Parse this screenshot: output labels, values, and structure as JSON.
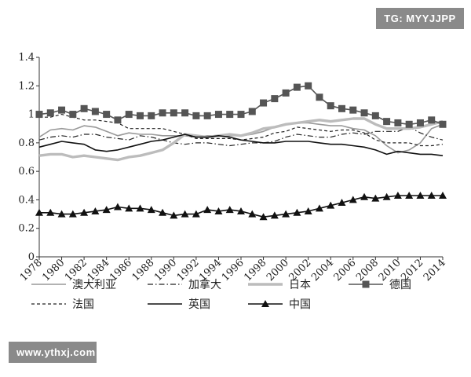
{
  "watermark_top": "TG: MYYJJPP",
  "watermark_bottom": "www.ythxj.com",
  "chart_data": {
    "type": "line",
    "x": [
      1978,
      1979,
      1980,
      1981,
      1982,
      1983,
      1984,
      1985,
      1986,
      1987,
      1988,
      1989,
      1990,
      1991,
      1992,
      1993,
      1994,
      1995,
      1996,
      1997,
      1998,
      1999,
      2000,
      2001,
      2002,
      2003,
      2004,
      2005,
      2006,
      2007,
      2008,
      2009,
      2010,
      2011,
      2012,
      2013,
      2014
    ],
    "xticks": [
      "1978",
      "1980",
      "1982",
      "1984",
      "1986",
      "1988",
      "1990",
      "1992",
      "1994",
      "1996",
      "1998",
      "2000",
      "2002",
      "2004",
      "2006",
      "2008",
      "2010",
      "2012",
      "2014"
    ],
    "ylim": [
      0,
      1.4
    ],
    "yticks": [
      "0",
      "0.2",
      "0.4",
      "0.6",
      "0.8",
      "1",
      "1.2",
      "1.4"
    ],
    "grid": false,
    "legend_position": "bottom",
    "series": [
      {
        "name": "澳大利亚",
        "color": "#999999",
        "style": "thin-solid",
        "marker": "none",
        "values": [
          0.84,
          0.89,
          0.9,
          0.89,
          0.92,
          0.91,
          0.88,
          0.85,
          0.87,
          0.86,
          0.86,
          0.85,
          0.85,
          0.85,
          0.84,
          0.85,
          0.85,
          0.85,
          0.85,
          0.86,
          0.88,
          0.91,
          0.93,
          0.94,
          0.94,
          0.93,
          0.92,
          0.92,
          0.9,
          0.89,
          0.85,
          0.78,
          0.73,
          0.75,
          0.8,
          0.9,
          0.93
        ]
      },
      {
        "name": "加拿大",
        "color": "#222222",
        "style": "dash-dot",
        "marker": "none",
        "values": [
          0.82,
          0.84,
          0.85,
          0.84,
          0.86,
          0.86,
          0.84,
          0.83,
          0.82,
          0.85,
          0.84,
          0.82,
          0.8,
          0.79,
          0.8,
          0.8,
          0.79,
          0.78,
          0.79,
          0.8,
          0.8,
          0.81,
          0.84,
          0.86,
          0.85,
          0.84,
          0.84,
          0.86,
          0.87,
          0.86,
          0.88,
          0.88,
          0.88,
          0.91,
          0.87,
          0.84,
          0.82
        ]
      },
      {
        "name": "日本",
        "color": "#bcbcbc",
        "style": "thick-solid",
        "marker": "none",
        "values": [
          0.71,
          0.72,
          0.72,
          0.7,
          0.71,
          0.7,
          0.69,
          0.68,
          0.7,
          0.71,
          0.73,
          0.75,
          0.8,
          0.86,
          0.85,
          0.84,
          0.85,
          0.86,
          0.85,
          0.87,
          0.9,
          0.91,
          0.93,
          0.94,
          0.95,
          0.96,
          0.95,
          0.96,
          0.97,
          0.97,
          0.93,
          0.9,
          0.9,
          0.9,
          0.91,
          0.93,
          0.95
        ]
      },
      {
        "name": "德国",
        "color": "#555555",
        "style": "solid",
        "marker": "square",
        "values": [
          1.0,
          1.01,
          1.03,
          1.0,
          1.04,
          1.02,
          1.0,
          0.96,
          1.0,
          0.99,
          0.99,
          1.01,
          1.01,
          1.01,
          0.99,
          0.99,
          1.0,
          1.0,
          1.0,
          1.02,
          1.08,
          1.11,
          1.15,
          1.19,
          1.2,
          1.12,
          1.06,
          1.04,
          1.03,
          1.01,
          0.99,
          0.95,
          0.94,
          0.93,
          0.94,
          0.96,
          0.93
        ]
      },
      {
        "name": "法国",
        "color": "#222222",
        "style": "dashed",
        "marker": "none",
        "values": [
          0.98,
          0.98,
          1.0,
          0.98,
          0.96,
          0.96,
          0.95,
          0.94,
          0.9,
          0.9,
          0.9,
          0.9,
          0.88,
          0.86,
          0.83,
          0.83,
          0.83,
          0.83,
          0.82,
          0.83,
          0.84,
          0.87,
          0.88,
          0.91,
          0.9,
          0.89,
          0.88,
          0.89,
          0.89,
          0.87,
          0.82,
          0.8,
          0.8,
          0.8,
          0.78,
          0.78,
          0.79
        ]
      },
      {
        "name": "英国",
        "color": "#111111",
        "style": "solid",
        "marker": "none",
        "values": [
          0.77,
          0.79,
          0.81,
          0.8,
          0.79,
          0.75,
          0.74,
          0.75,
          0.77,
          0.79,
          0.81,
          0.82,
          0.84,
          0.86,
          0.84,
          0.84,
          0.85,
          0.84,
          0.82,
          0.81,
          0.8,
          0.8,
          0.81,
          0.81,
          0.81,
          0.8,
          0.79,
          0.79,
          0.78,
          0.77,
          0.75,
          0.72,
          0.74,
          0.73,
          0.72,
          0.72,
          0.71
        ]
      },
      {
        "name": "中国",
        "color": "#111111",
        "style": "solid",
        "marker": "triangle",
        "values": [
          0.31,
          0.31,
          0.3,
          0.3,
          0.31,
          0.32,
          0.33,
          0.35,
          0.34,
          0.34,
          0.33,
          0.31,
          0.29,
          0.3,
          0.3,
          0.33,
          0.32,
          0.33,
          0.32,
          0.3,
          0.28,
          0.29,
          0.3,
          0.31,
          0.32,
          0.34,
          0.36,
          0.38,
          0.4,
          0.42,
          0.41,
          0.42,
          0.43,
          0.43,
          0.43,
          0.43,
          0.43
        ]
      }
    ]
  }
}
